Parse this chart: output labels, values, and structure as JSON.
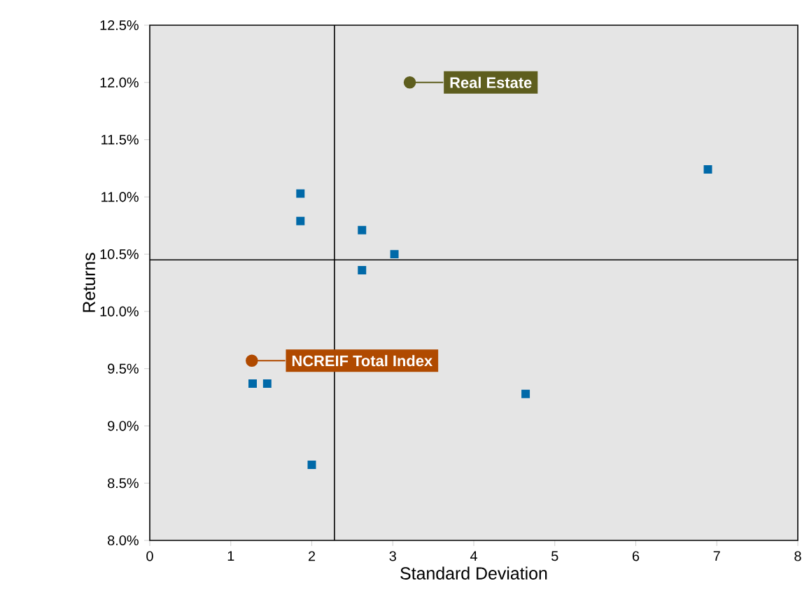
{
  "chart_data": {
    "type": "scatter",
    "xlabel": "Standard Deviation",
    "ylabel": "Returns",
    "xlim": [
      0,
      8
    ],
    "ylim": [
      8.0,
      12.5
    ],
    "xticks": [
      0,
      1,
      2,
      3,
      4,
      5,
      6,
      7,
      8
    ],
    "yticks": [
      {
        "value": 8.0,
        "label": "8.0%"
      },
      {
        "value": 8.5,
        "label": "8.5%"
      },
      {
        "value": 9.0,
        "label": "9.0%"
      },
      {
        "value": 9.5,
        "label": "9.5%"
      },
      {
        "value": 10.0,
        "label": "10.0%"
      },
      {
        "value": 10.5,
        "label": "10.5%"
      },
      {
        "value": 11.0,
        "label": "11.0%"
      },
      {
        "value": 11.5,
        "label": "11.5%"
      },
      {
        "value": 12.0,
        "label": "12.0%"
      },
      {
        "value": 12.5,
        "label": "12.5%"
      }
    ],
    "ref_lines": [
      {
        "axis": "x",
        "value": 2.28,
        "color": "#000000"
      },
      {
        "axis": "y",
        "value": 10.45,
        "color": "#000000"
      }
    ],
    "series": [
      {
        "marker": "square",
        "color": "#0069a8",
        "x": [
          1.86,
          1.86,
          2.62,
          2.62,
          3.02,
          6.89,
          1.27,
          1.45,
          4.64,
          2.0
        ],
        "values": [
          11.03,
          10.79,
          10.71,
          10.36,
          10.5,
          11.24,
          9.37,
          9.37,
          9.28,
          8.66
        ]
      },
      {
        "marker": "circle",
        "color": "#5e5e1e",
        "x": [
          3.21
        ],
        "values": [
          12.0
        ]
      },
      {
        "marker": "circle",
        "color": "#b04a00",
        "x": [
          1.26
        ],
        "values": [
          9.57
        ]
      }
    ],
    "annotations": [
      {
        "text": "Real Estate",
        "x": 3.21,
        "y": 12.0
      },
      {
        "text": "NCREIF Total Index",
        "x": 1.26,
        "y": 9.57
      }
    ]
  }
}
